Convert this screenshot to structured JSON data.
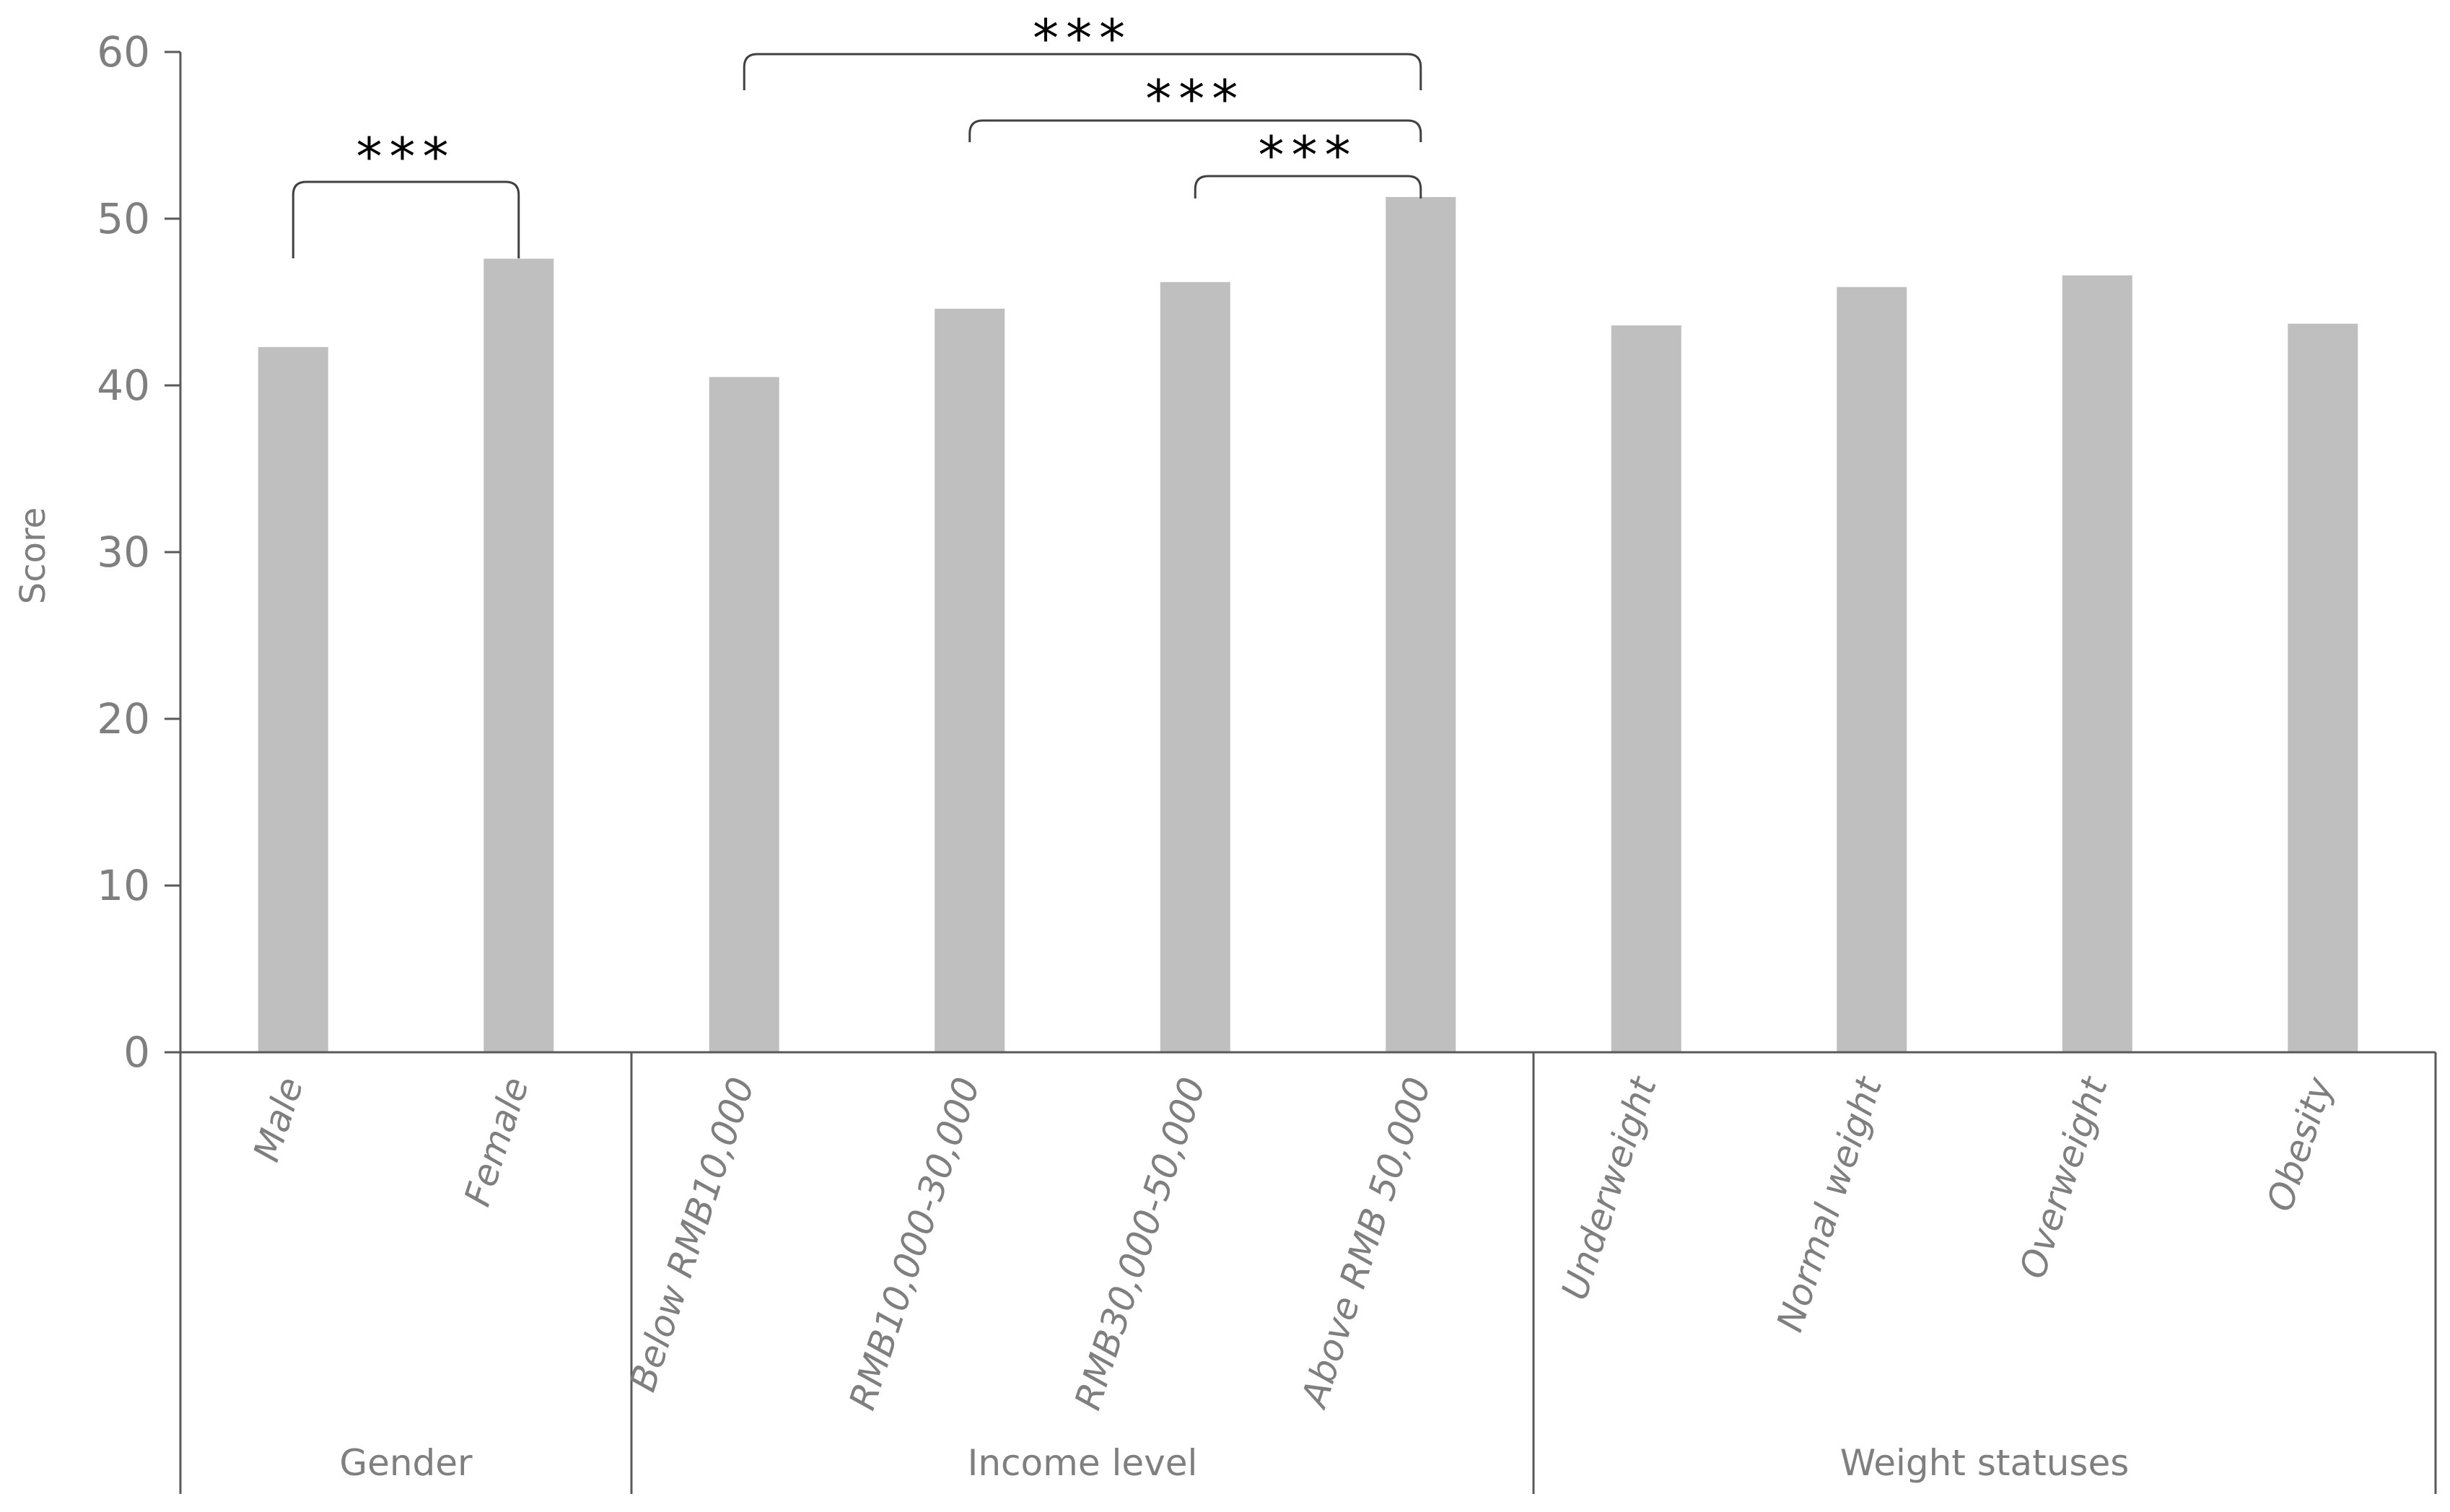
{
  "chart_data": {
    "type": "bar",
    "ylabel": "Score",
    "xlabel": "",
    "ylim": [
      0,
      60
    ],
    "yticks": [
      0,
      10,
      20,
      30,
      40,
      50,
      60
    ],
    "grid": false,
    "categories": [
      "Male",
      "Female",
      "Below RMB10,000",
      "RMB10,000-30,000",
      "RMB30,000-50,000",
      "Above RMB 50,000",
      "Underweight",
      "Normal weight",
      "Overweight",
      "Obesity"
    ],
    "values": [
      42.3,
      47.6,
      40.5,
      44.6,
      46.2,
      51.3,
      43.6,
      45.9,
      46.6,
      43.7
    ],
    "groups": [
      {
        "label": "Gender",
        "categories": [
          "Male",
          "Female"
        ]
      },
      {
        "label": "Income level",
        "categories": [
          "Below RMB10,000",
          "RMB10,000-30,000",
          "RMB30,000-50,000",
          "Above RMB 50,000"
        ]
      },
      {
        "label": "Weight statuses",
        "categories": [
          "Underweight",
          "Normal weight",
          "Overweight",
          "Obesity"
        ]
      }
    ],
    "bar_color": "#bfbfbf",
    "significance": [
      {
        "from": "Male",
        "to": "Female",
        "label": "***"
      },
      {
        "from": "Below RMB10,000",
        "to": "Above RMB 50,000",
        "label": "***"
      },
      {
        "from": "RMB10,000-30,000",
        "to": "Above RMB 50,000",
        "label": "***"
      },
      {
        "from": "RMB30,000-50,000",
        "to": "Above RMB 50,000",
        "label": "***"
      }
    ]
  }
}
